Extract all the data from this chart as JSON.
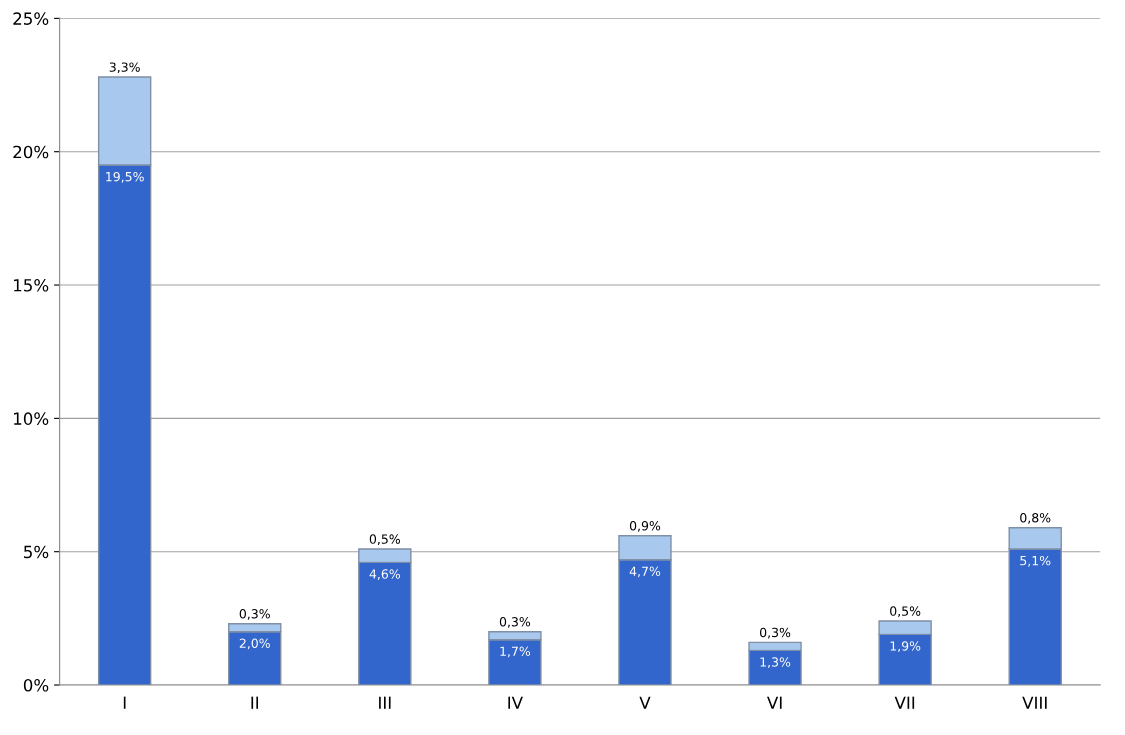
{
  "chart_data": {
    "type": "bar",
    "stacked": true,
    "categories": [
      "I",
      "II",
      "III",
      "IV",
      "V",
      "VI",
      "VII",
      "VIII"
    ],
    "series": [
      {
        "color": "#3366cc",
        "values": [
          19.5,
          2.0,
          4.6,
          1.7,
          4.7,
          1.3,
          1.9,
          5.1
        ],
        "value_labels": [
          "19,5%",
          "2,0%",
          "4,6%",
          "1,7%",
          "4,7%",
          "1,3%",
          "1,9%",
          "5,1%"
        ]
      },
      {
        "color": "#a9c8ee",
        "values": [
          3.3,
          0.3,
          0.5,
          0.3,
          0.9,
          0.3,
          0.5,
          0.8
        ],
        "value_labels": [
          "3,3%",
          "0,3%",
          "0,5%",
          "0,3%",
          "0,9%",
          "0,3%",
          "0,5%",
          "0,8%"
        ]
      }
    ],
    "ylim": [
      0,
      25
    ],
    "yticks": [
      {
        "value": 0,
        "label": "0%"
      },
      {
        "value": 5,
        "label": "5%"
      },
      {
        "value": 10,
        "label": "10%"
      },
      {
        "value": 15,
        "label": "15%"
      },
      {
        "value": 20,
        "label": "20%"
      },
      {
        "value": 25,
        "label": "25%"
      }
    ],
    "grid": "y"
  }
}
